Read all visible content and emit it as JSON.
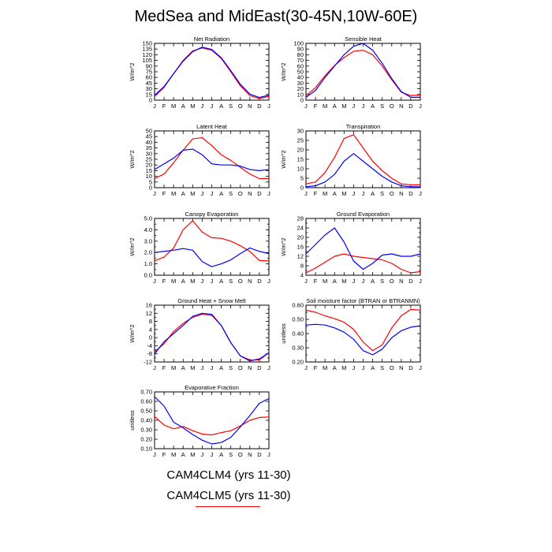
{
  "figure": {
    "title": "MedSea and MidEast(30-45N,10W-60E)"
  },
  "legend": {
    "entries": [
      {
        "label": "CAM4CLM4 (yrs 11-30)",
        "color": "#0000ff"
      },
      {
        "label": "CAM4CLM5 (yrs 11-30)",
        "color": "#ff0000"
      }
    ]
  },
  "chart_data": [
    {
      "type": "line",
      "title": "Net Radiation",
      "xlabel": "",
      "ylabel": "W/m^2",
      "categories": [
        "J",
        "F",
        "M",
        "A",
        "M",
        "J",
        "J",
        "A",
        "S",
        "O",
        "N",
        "D",
        "J"
      ],
      "ylim": [
        0,
        150
      ],
      "yticks": [
        0,
        15,
        30,
        45,
        60,
        75,
        90,
        105,
        120,
        135,
        150
      ],
      "ytick_labels": [
        "0",
        "15",
        "30",
        "45",
        "60",
        "75",
        "90",
        "105",
        "120",
        "135",
        "150"
      ],
      "series": [
        {
          "name": "CAM4CLM4 (yrs 11-30)",
          "color": "#0000ff",
          "values": [
            13,
            36,
            70,
            103,
            128,
            140,
            134,
            112,
            78,
            42,
            16,
            7,
            13
          ]
        },
        {
          "name": "CAM4CLM5 (yrs 11-30)",
          "color": "#ff0000",
          "values": [
            10,
            34,
            70,
            105,
            130,
            138,
            132,
            110,
            75,
            38,
            12,
            4,
            10
          ]
        }
      ]
    },
    {
      "type": "line",
      "title": "Sensible Heat",
      "xlabel": "",
      "ylabel": "W/m^2",
      "categories": [
        "J",
        "F",
        "M",
        "A",
        "M",
        "J",
        "J",
        "A",
        "S",
        "O",
        "N",
        "D",
        "J"
      ],
      "ylim": [
        0,
        100
      ],
      "yticks": [
        0,
        10,
        20,
        30,
        40,
        50,
        60,
        70,
        80,
        90,
        100
      ],
      "ytick_labels": [
        "0",
        "10",
        "20",
        "30",
        "40",
        "50",
        "60",
        "70",
        "80",
        "90",
        "100"
      ],
      "series": [
        {
          "name": "CAM4CLM4 (yrs 11-30)",
          "color": "#0000ff",
          "values": [
            5,
            17,
            40,
            60,
            80,
            95,
            100,
            88,
            65,
            38,
            15,
            5,
            5
          ]
        },
        {
          "name": "CAM4CLM5 (yrs 11-30)",
          "color": "#ff0000",
          "values": [
            8,
            22,
            43,
            61,
            75,
            86,
            88,
            80,
            60,
            36,
            14,
            8,
            9
          ]
        }
      ]
    },
    {
      "type": "line",
      "title": "Latent Heat",
      "xlabel": "",
      "ylabel": "W/m^2",
      "categories": [
        "J",
        "F",
        "M",
        "A",
        "M",
        "J",
        "J",
        "A",
        "S",
        "O",
        "N",
        "D",
        "J"
      ],
      "ylim": [
        0,
        50
      ],
      "yticks": [
        0,
        5,
        10,
        15,
        20,
        25,
        30,
        35,
        40,
        45,
        50
      ],
      "ytick_labels": [
        "0",
        "5",
        "10",
        "15",
        "20",
        "25",
        "30",
        "35",
        "40",
        "45",
        "50"
      ],
      "series": [
        {
          "name": "CAM4CLM4 (yrs 11-30)",
          "color": "#0000ff",
          "values": [
            16,
            21,
            26,
            33,
            34,
            29,
            21,
            20,
            20,
            19,
            16,
            15,
            16
          ]
        },
        {
          "name": "CAM4CLM5 (yrs 11-30)",
          "color": "#ff0000",
          "values": [
            8,
            12,
            22,
            33,
            43,
            44,
            37,
            29,
            24,
            18,
            12,
            8,
            8
          ]
        }
      ]
    },
    {
      "type": "line",
      "title": "Transpiration",
      "xlabel": "",
      "ylabel": "W/m^2",
      "categories": [
        "J",
        "F",
        "M",
        "A",
        "M",
        "J",
        "J",
        "A",
        "S",
        "O",
        "N",
        "D",
        "J"
      ],
      "ylim": [
        0,
        30
      ],
      "yticks": [
        0,
        5,
        10,
        15,
        20,
        25,
        30
      ],
      "ytick_labels": [
        "0",
        "5",
        "10",
        "15",
        "20",
        "25",
        "30"
      ],
      "series": [
        {
          "name": "CAM4CLM4 (yrs 11-30)",
          "color": "#0000ff",
          "values": [
            0.5,
            1,
            3,
            7,
            14,
            18,
            14,
            10,
            6,
            3,
            1,
            0.5,
            0.5
          ]
        },
        {
          "name": "CAM4CLM5 (yrs 11-30)",
          "color": "#ff0000",
          "values": [
            2,
            3,
            8,
            16,
            26,
            28,
            21,
            14,
            9,
            5,
            2,
            1.5,
            1.5
          ]
        }
      ]
    },
    {
      "type": "line",
      "title": "Canopy Evaporation",
      "xlabel": "",
      "ylabel": "W/m^2",
      "categories": [
        "J",
        "F",
        "M",
        "A",
        "M",
        "J",
        "J",
        "A",
        "S",
        "O",
        "N",
        "D",
        "J"
      ],
      "ylim": [
        0,
        5
      ],
      "yticks": [
        0,
        0.5,
        1,
        1.5,
        2,
        2.5,
        3,
        3.5,
        4,
        4.5,
        5
      ],
      "ytick_labels": [
        "0.0",
        "",
        "1.0",
        "",
        "2.0",
        "",
        "3.0",
        "",
        "4.0",
        "",
        "5.0"
      ],
      "series": [
        {
          "name": "CAM4CLM4 (yrs 11-30)",
          "color": "#0000ff",
          "values": [
            2.0,
            2.1,
            2.2,
            2.35,
            2.2,
            1.2,
            0.75,
            1.0,
            1.35,
            1.9,
            2.4,
            2.1,
            1.9
          ]
        },
        {
          "name": "CAM4CLM5 (yrs 11-30)",
          "color": "#ff0000",
          "values": [
            1.25,
            1.6,
            2.4,
            4.0,
            4.8,
            3.8,
            3.3,
            3.25,
            3.0,
            2.6,
            2.1,
            1.3,
            1.25
          ]
        }
      ]
    },
    {
      "type": "line",
      "title": "Ground Evaporation",
      "xlabel": "",
      "ylabel": "W/m^2",
      "categories": [
        "J",
        "F",
        "M",
        "A",
        "M",
        "J",
        "J",
        "A",
        "S",
        "O",
        "N",
        "D",
        "J"
      ],
      "ylim": [
        4,
        28
      ],
      "yticks": [
        4,
        6,
        8,
        10,
        12,
        14,
        16,
        18,
        20,
        22,
        24,
        26,
        28
      ],
      "ytick_labels": [
        "4",
        "",
        "8",
        "",
        "12",
        "",
        "16",
        "",
        "20",
        "",
        "24",
        "",
        "28"
      ],
      "series": [
        {
          "name": "CAM4CLM4 (yrs 11-30)",
          "color": "#0000ff",
          "values": [
            13,
            17,
            21,
            24,
            18,
            10,
            6.5,
            9,
            12.5,
            13,
            12,
            12,
            13
          ]
        },
        {
          "name": "CAM4CLM5 (yrs 11-30)",
          "color": "#ff0000",
          "values": [
            5,
            7,
            9.5,
            12,
            13,
            12,
            11.5,
            11,
            10.5,
            9,
            6.5,
            5,
            5.5
          ]
        }
      ]
    },
    {
      "type": "line",
      "title": "Ground Heat + Snow Melt",
      "xlabel": "",
      "ylabel": "W/m^2",
      "categories": [
        "J",
        "F",
        "M",
        "A",
        "M",
        "J",
        "J",
        "A",
        "S",
        "O",
        "N",
        "D",
        "J"
      ],
      "ylim": [
        -12,
        16
      ],
      "yticks": [
        -12,
        -10,
        -8,
        -6,
        -4,
        -2,
        0,
        2,
        4,
        6,
        8,
        10,
        12,
        14,
        16
      ],
      "ytick_labels": [
        "-12",
        "",
        "-8",
        "",
        "-4",
        "",
        "0",
        "",
        "4",
        "",
        "8",
        "",
        "12",
        "",
        "16"
      ],
      "series": [
        {
          "name": "CAM4CLM4 (yrs 11-30)",
          "color": "#0000ff",
          "values": [
            -8,
            -2,
            2,
            6,
            10.5,
            12,
            11.5,
            6,
            -2.5,
            -9,
            -11.5,
            -10.5,
            -7.5
          ]
        },
        {
          "name": "CAM4CLM5 (yrs 11-30)",
          "color": "#ff0000",
          "values": [
            -7,
            -3,
            3,
            7,
            10,
            11.5,
            11,
            6,
            -2.5,
            -9,
            -11,
            -11,
            -7.5
          ]
        }
      ]
    },
    {
      "type": "line",
      "title": "Soil moisture factor (BTRAN or BTRANMN)",
      "xlabel": "",
      "ylabel": "unitless",
      "categories": [
        "J",
        "F",
        "M",
        "A",
        "M",
        "J",
        "J",
        "A",
        "S",
        "O",
        "N",
        "D",
        "J"
      ],
      "ylim": [
        0.2,
        0.6
      ],
      "yticks": [
        0.2,
        0.25,
        0.3,
        0.35,
        0.4,
        0.45,
        0.5,
        0.55,
        0.6
      ],
      "ytick_labels": [
        "0.20",
        "",
        "0.30",
        "",
        "0.40",
        "",
        "0.50",
        "",
        "0.60"
      ],
      "series": [
        {
          "name": "CAM4CLM4 (yrs 11-30)",
          "color": "#0000ff",
          "values": [
            0.46,
            0.465,
            0.46,
            0.44,
            0.41,
            0.36,
            0.28,
            0.25,
            0.29,
            0.37,
            0.42,
            0.445,
            0.455
          ]
        },
        {
          "name": "CAM4CLM5 (yrs 11-30)",
          "color": "#ff0000",
          "values": [
            0.565,
            0.55,
            0.525,
            0.505,
            0.48,
            0.43,
            0.34,
            0.28,
            0.32,
            0.44,
            0.525,
            0.57,
            0.565
          ]
        }
      ]
    },
    {
      "type": "line",
      "title": "Evaporative Fraction",
      "xlabel": "",
      "ylabel": "unitless",
      "categories": [
        "J",
        "F",
        "M",
        "A",
        "M",
        "J",
        "J",
        "A",
        "S",
        "O",
        "N",
        "D",
        "J"
      ],
      "ylim": [
        0.1,
        0.7
      ],
      "yticks": [
        0.1,
        0.2,
        0.3,
        0.4,
        0.5,
        0.6,
        0.7
      ],
      "ytick_labels": [
        "0.10",
        "0.20",
        "0.30",
        "0.40",
        "0.50",
        "0.60",
        "0.70"
      ],
      "series": [
        {
          "name": "CAM4CLM4 (yrs 11-30)",
          "color": "#0000ff",
          "values": [
            0.65,
            0.55,
            0.38,
            0.32,
            0.25,
            0.19,
            0.15,
            0.165,
            0.22,
            0.33,
            0.45,
            0.58,
            0.63
          ]
        },
        {
          "name": "CAM4CLM5 (yrs 11-30)",
          "color": "#ff0000",
          "values": [
            0.44,
            0.35,
            0.31,
            0.335,
            0.29,
            0.255,
            0.245,
            0.27,
            0.29,
            0.34,
            0.4,
            0.43,
            0.435
          ]
        }
      ]
    }
  ]
}
